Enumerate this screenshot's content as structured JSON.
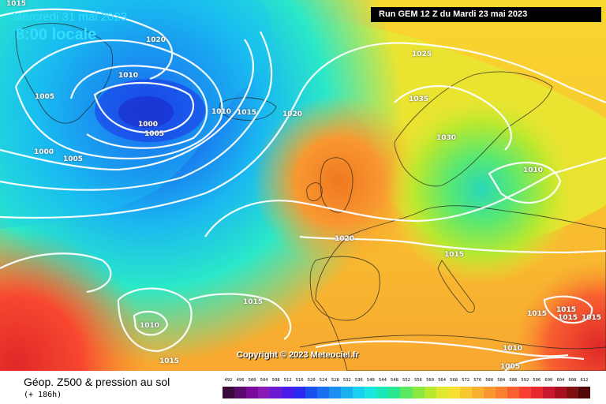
{
  "header": {
    "date": "Mercredi 31 mai 2023",
    "local_time": "8:00 locale",
    "run_info": "Run GEM 12 Z du Mardi 23 mai 2023"
  },
  "copyright": "Copyright © 2023 Meteociel.fr",
  "footer": {
    "field_title": "Géop. Z500 & pression au sol",
    "forecast_hour": "(+ 186h)"
  },
  "isobar_labels": [
    "1015",
    "1020",
    "1010",
    "1005",
    "1000",
    "1005",
    "1000",
    "1005",
    "1010",
    "1015",
    "1020",
    "1025",
    "1035",
    "1030",
    "1010",
    "1020",
    "1015",
    "1015",
    "1010",
    "1015",
    "1015",
    "1015",
    "1015",
    "1015",
    "1010",
    "1005"
  ],
  "scale": {
    "labels": [
      "492",
      "496",
      "500",
      "504",
      "508",
      "512",
      "516",
      "520",
      "524",
      "528",
      "532",
      "536",
      "540",
      "544",
      "548",
      "552",
      "556",
      "560",
      "564",
      "568",
      "572",
      "576",
      "580",
      "584",
      "588",
      "592",
      "596",
      "600",
      "604",
      "608",
      "612"
    ],
    "colors": [
      "#3a0a3a",
      "#5a0a6a",
      "#7a0a9a",
      "#8a1ab8",
      "#6a1ad0",
      "#4a1ae8",
      "#2a2af0",
      "#1a50f0",
      "#1a70f0",
      "#1a90f0",
      "#1ab0f0",
      "#1ad0f0",
      "#1ae8e0",
      "#1ae8b8",
      "#2ae890",
      "#5ae860",
      "#8ae840",
      "#b8e830",
      "#e0e830",
      "#f8e030",
      "#f8c830",
      "#f8b030",
      "#f89830",
      "#f88030",
      "#f86030",
      "#f84030",
      "#e82830",
      "#c81830",
      "#a81020",
      "#801010",
      "#500808"
    ]
  }
}
